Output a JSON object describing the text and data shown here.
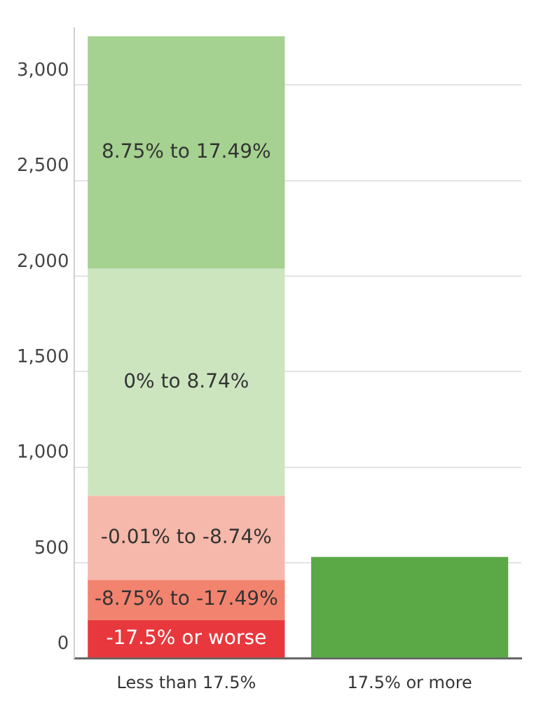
{
  "chart_data": {
    "type": "bar",
    "stacked": true,
    "categories": [
      "Less than 17.5%",
      "17.5% or more"
    ],
    "series": [
      {
        "name": "-17.5% or worse",
        "color": "#e8383d",
        "values": [
          200,
          null
        ]
      },
      {
        "name": "-8.75% to -17.49%",
        "color": "#f2836f",
        "values": [
          210,
          null
        ]
      },
      {
        "name": "-0.01% to -8.74%",
        "color": "#f6b8aa",
        "values": [
          440,
          null
        ]
      },
      {
        "name": "0% to 8.74%",
        "color": "#cce5bf",
        "values": [
          1190,
          null
        ]
      },
      {
        "name": "8.75% to 17.49%",
        "color": "#a5d191",
        "values": [
          1215,
          null
        ]
      },
      {
        "color": "#5aa846",
        "values": [
          null,
          530
        ]
      }
    ],
    "ylim": [
      0,
      3300
    ],
    "yticks": [
      0,
      {
        "value": 500,
        "label": "500"
      },
      {
        "value": 1000,
        "label": "1,000"
      },
      {
        "value": 1500,
        "label": "1,500"
      },
      {
        "value": 2000,
        "label": "2,000"
      },
      {
        "value": 2500,
        "label": "2,500"
      },
      {
        "value": 3000,
        "label": "3,000"
      }
    ],
    "grid": "y",
    "legend": false
  }
}
